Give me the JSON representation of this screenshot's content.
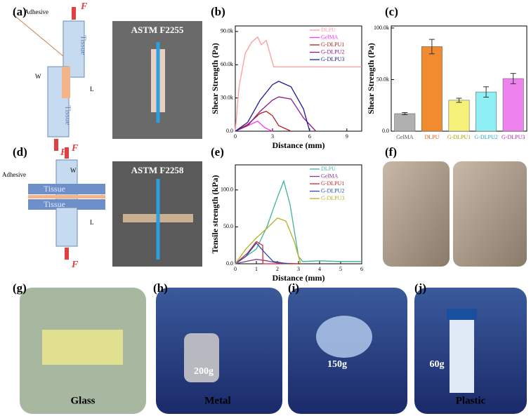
{
  "panel_labels": [
    "(a)",
    "(b)",
    "(c)",
    "(d)",
    "(e)",
    "(f)",
    "(g)",
    "(h)",
    "(i)",
    "(j)"
  ],
  "schematic_a": {
    "force": "F",
    "adhesive": "Adhesive",
    "tissue": "Tissue",
    "width": "W",
    "length": "L"
  },
  "photo_a": "ASTM F2255",
  "schematic_d": {
    "force": "F",
    "adhesive": "Adhesive",
    "tissue": "Tissue",
    "width": "W",
    "length": "L"
  },
  "photo_d": "ASTM F2258",
  "photos_bottom": [
    {
      "material": "Glass"
    },
    {
      "material": "Metal",
      "weight": "200g"
    },
    {
      "weight": "150g"
    },
    {
      "material": "Plastic",
      "weight": "60g"
    }
  ],
  "chart_data": [
    {
      "type": "line",
      "xlabel": "Distance (mm)",
      "ylabel": "Shear Strength (Pa)",
      "xlim": [
        0,
        10.2
      ],
      "xticks": [
        0,
        3,
        6,
        9
      ],
      "ylim": [
        0,
        95000
      ],
      "yticks": [
        {
          "value": 0,
          "label": "0.0"
        },
        {
          "value": 30000,
          "label": "30.0k"
        },
        {
          "value": 60000,
          "label": "60.0k"
        },
        {
          "value": 90000,
          "label": "90.0k"
        }
      ],
      "series": [
        {
          "name": "DLPU",
          "color": "#ff9999",
          "x": [
            0,
            0.3,
            0.8,
            1.3,
            1.8,
            2.1,
            2.5,
            2.8,
            3.1,
            4,
            6,
            8,
            10.2
          ],
          "values": [
            0,
            40000,
            70000,
            80000,
            85000,
            78000,
            82000,
            70000,
            58000,
            58000,
            58000,
            58000,
            58000
          ]
        },
        {
          "name": "GelMA",
          "color": "#ff33ff",
          "x": [
            0,
            0.8,
            1.8,
            2.4,
            3
          ],
          "values": [
            0,
            4000,
            9000,
            3000,
            0
          ]
        },
        {
          "name": "G-DLPU1",
          "color": "#b22222",
          "x": [
            0,
            1,
            2,
            2.5,
            3,
            3.5,
            4.5
          ],
          "values": [
            0,
            6000,
            16000,
            18000,
            14000,
            5000,
            0
          ]
        },
        {
          "name": "G-DLPU2",
          "color": "#8b1a8b",
          "x": [
            0,
            1,
            2,
            3,
            3.5,
            4.5,
            5.5,
            6.5
          ],
          "values": [
            0,
            5000,
            18000,
            28000,
            31000,
            29000,
            12000,
            0
          ]
        },
        {
          "name": "G-DLPU3",
          "color": "#1a1a9c",
          "x": [
            0,
            1,
            2,
            3,
            3.5,
            4.5,
            5.5,
            6
          ],
          "values": [
            0,
            8000,
            28000,
            42000,
            45000,
            40000,
            20000,
            0
          ]
        }
      ]
    },
    {
      "type": "bar",
      "ylabel": "Shear Strength (Pa)",
      "categories": [
        "GelMA",
        "DLPU",
        "G-DLPU1",
        "G-DLPU2",
        "G-DLPU3"
      ],
      "values": [
        17000,
        82000,
        30000,
        38000,
        51000
      ],
      "errors": [
        1000,
        7000,
        2000,
        5000,
        5000
      ],
      "colors": [
        "#b0b0b0",
        "#f28a30",
        "#f5f07a",
        "#8ef0f5",
        "#ee82ee"
      ],
      "label_colors": [
        "#555555",
        "#e06010",
        "#a8a000",
        "#20a0c0",
        "#c020c0"
      ],
      "ylim": [
        0,
        102000
      ],
      "yticks": [
        {
          "value": 0,
          "label": "0.0"
        },
        {
          "value": 50000,
          "label": "50.0k"
        },
        {
          "value": 100000,
          "label": "100.0k"
        }
      ]
    },
    {
      "type": "line",
      "xlabel": "Distance (mm)",
      "ylabel": "Tensile strength (kPa)",
      "xlim": [
        0,
        6
      ],
      "xticks": [
        0,
        1,
        2,
        3,
        4,
        5,
        6
      ],
      "ylim": [
        0,
        134
      ],
      "yticks": [
        {
          "value": 0,
          "label": "0.0"
        },
        {
          "value": 50,
          "label": "50.0"
        },
        {
          "value": 100,
          "label": "100.0"
        }
      ],
      "series": [
        {
          "name": "DLPU",
          "color": "#3cb39b",
          "x": [
            0,
            1,
            1.5,
            2,
            2.3,
            2.6,
            3,
            3.2,
            4,
            5,
            6
          ],
          "values": [
            0,
            20,
            50,
            90,
            112,
            80,
            10,
            3,
            4,
            3,
            3
          ]
        },
        {
          "name": "GelMA",
          "color": "#8b3a8b",
          "x": [
            0,
            0.5,
            1,
            1.5,
            2,
            3
          ],
          "values": [
            0,
            3,
            6,
            4,
            1,
            0
          ]
        },
        {
          "name": "G-DLPU1",
          "color": "#d62728",
          "x": [
            0,
            0.6,
            1,
            1.3,
            1.31,
            2,
            3
          ],
          "values": [
            0,
            15,
            30,
            25,
            0,
            0,
            0
          ]
        },
        {
          "name": "G-DLPU2",
          "color": "#1f4fbf",
          "x": [
            0,
            0.5,
            1,
            1.4,
            1.8,
            2.5
          ],
          "values": [
            0,
            10,
            28,
            15,
            3,
            0
          ]
        },
        {
          "name": "G-DLPU3",
          "color": "#b5b020",
          "x": [
            0,
            0.5,
            1,
            1.5,
            2,
            2.4,
            2.8,
            3.1
          ],
          "values": [
            0,
            20,
            35,
            48,
            62,
            58,
            30,
            0
          ]
        }
      ]
    }
  ]
}
